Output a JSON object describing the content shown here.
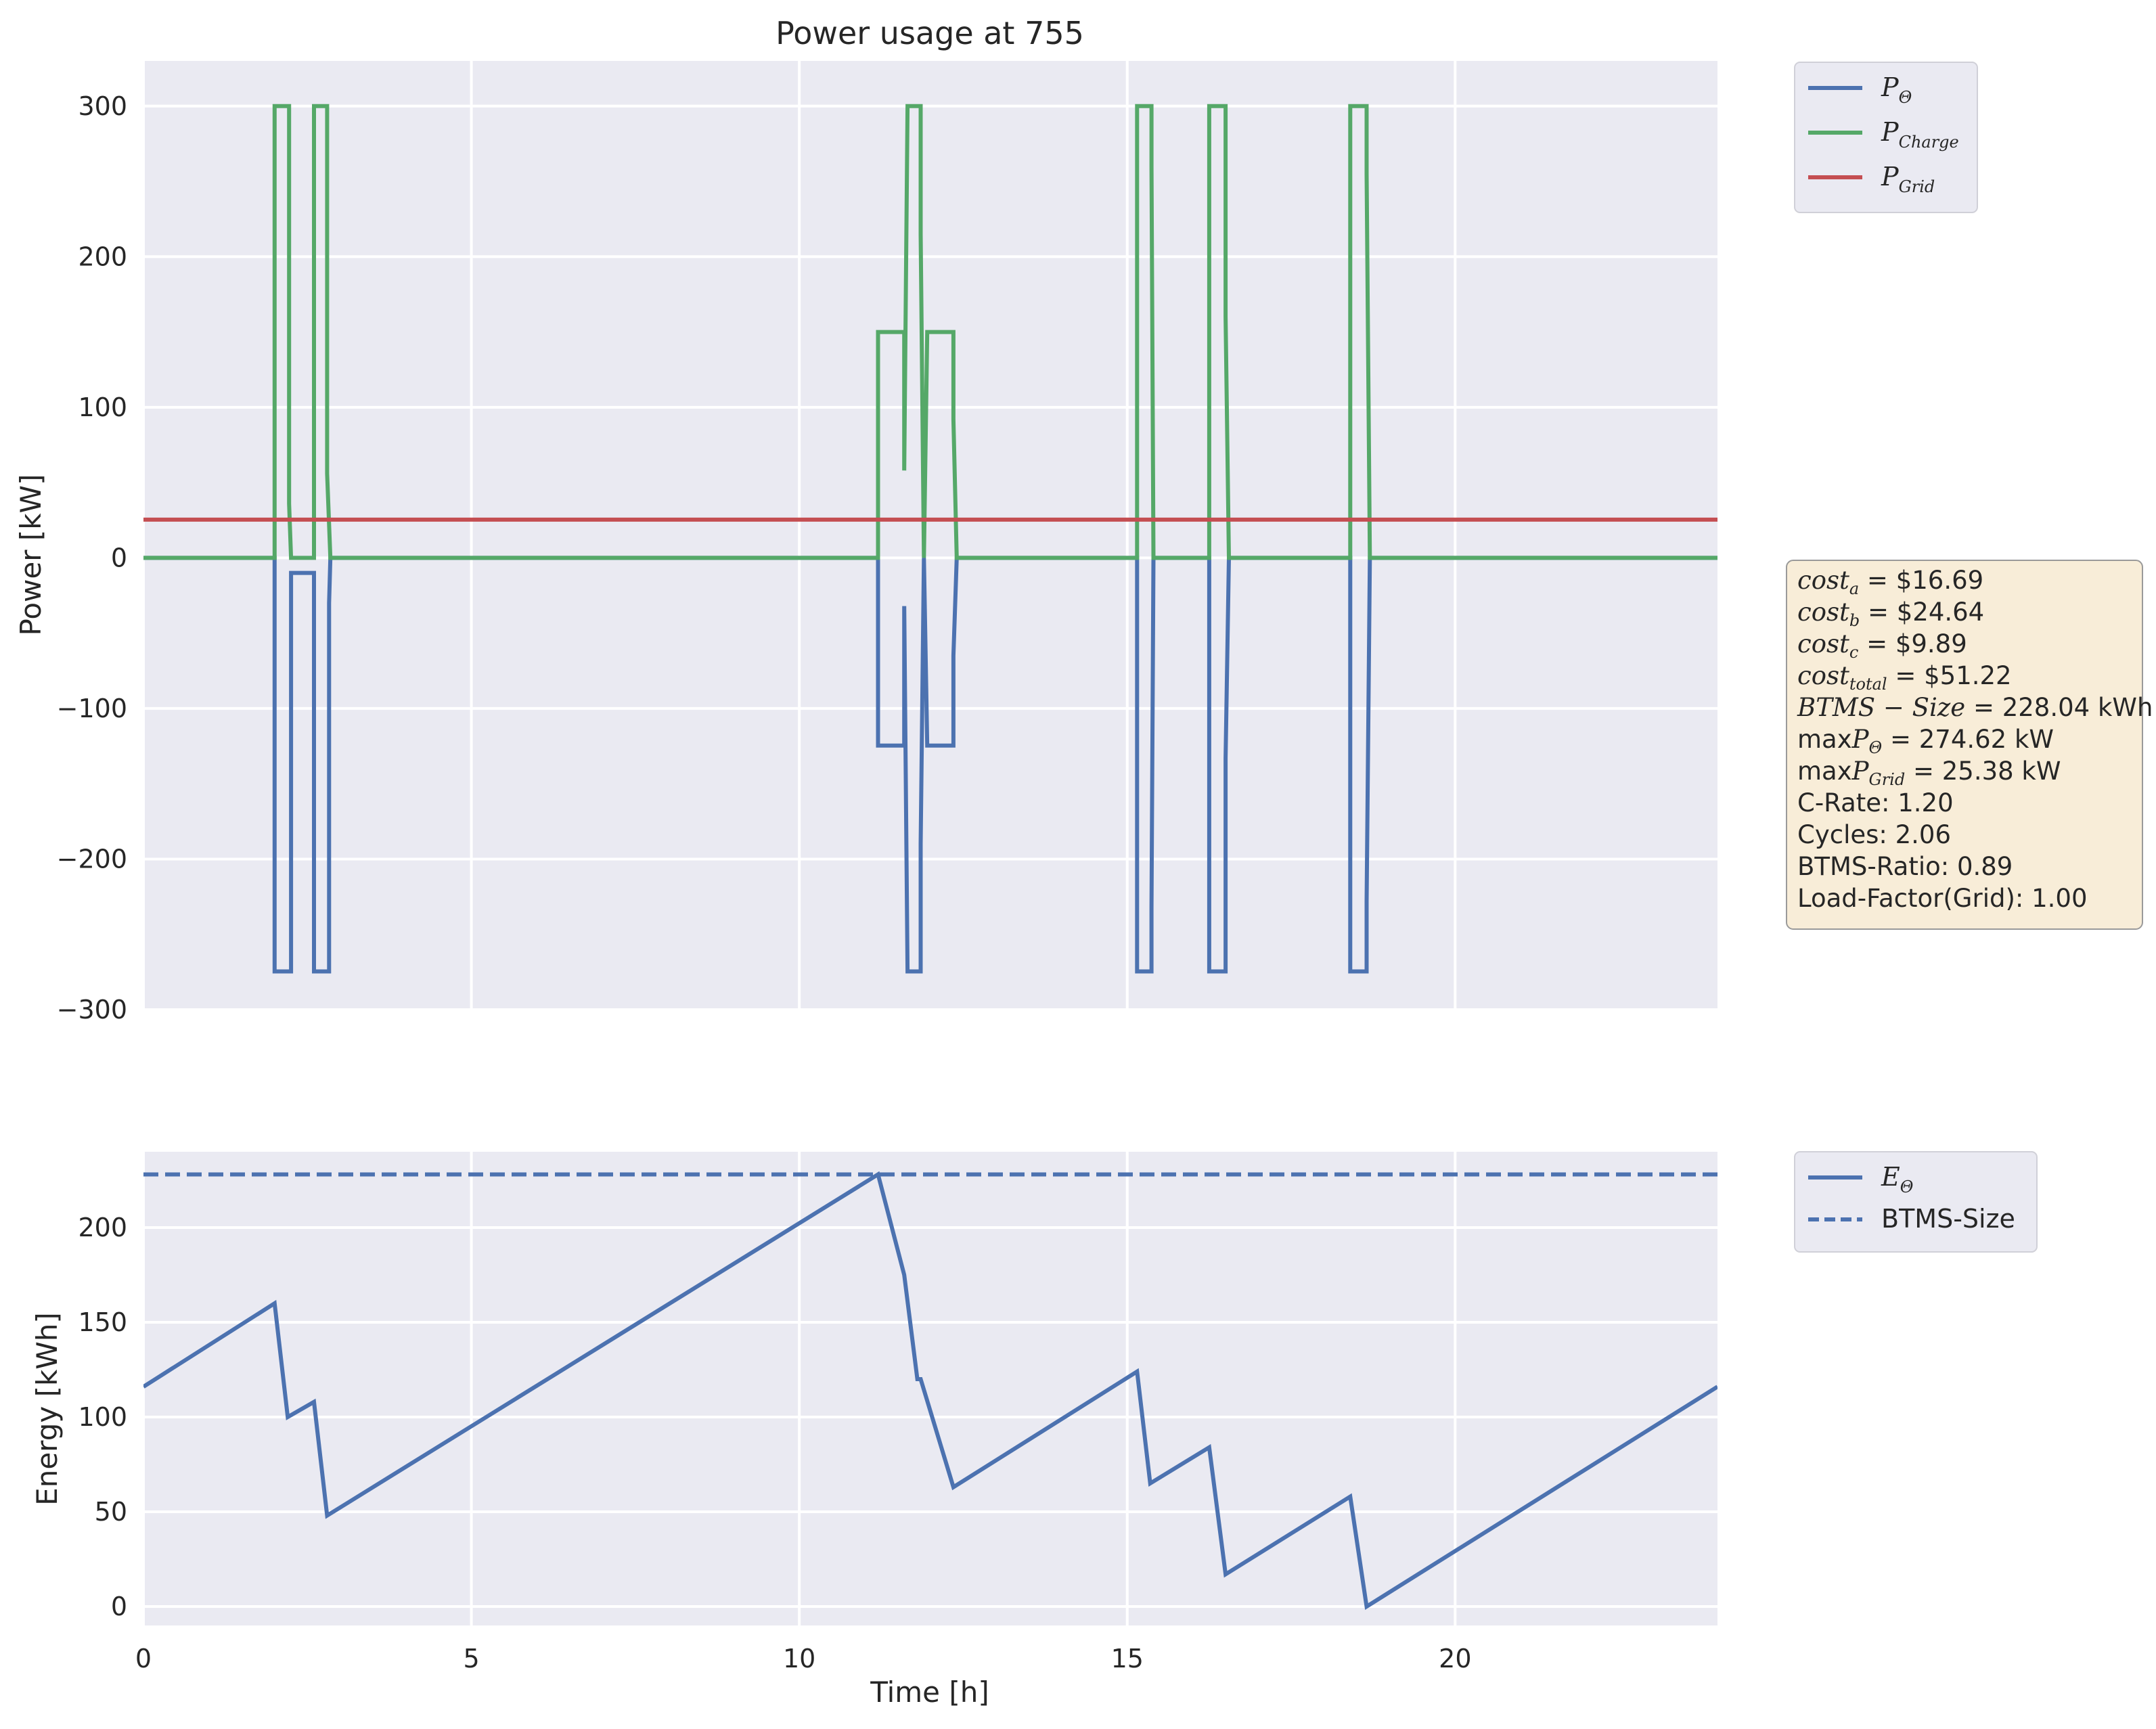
{
  "colors": {
    "p_theta": "#4c72b0",
    "p_charge": "#55a868",
    "p_grid": "#c44e52",
    "axes_bg": "#eaeaf2",
    "grid": "#ffffff",
    "stats_bg": "#f8edd8",
    "stats_border": "#9a9a9a"
  },
  "chart_data": [
    {
      "type": "line",
      "title": "Power usage at 755",
      "xlabel": "",
      "ylabel": "Power [kW]",
      "xlim": [
        0,
        24
      ],
      "ylim": [
        -300,
        330
      ],
      "yticks": [
        300,
        200,
        100,
        0,
        -100,
        -200,
        -300
      ],
      "ytick_labels": [
        "300",
        "200",
        "100",
        "0",
        "−100",
        "−200",
        "−300"
      ],
      "xticks": [
        0,
        5,
        10,
        15,
        20
      ],
      "grid": true,
      "legend": "outside-top-right",
      "series": [
        {
          "name": "P_Θ",
          "color": "#4c72b0",
          "step": true,
          "points": [
            [
              0,
              0
            ],
            [
              2,
              0
            ],
            [
              2,
              -274.62
            ],
            [
              2.25,
              -274.62
            ],
            [
              2.25,
              -10
            ],
            [
              2.6,
              -10
            ],
            [
              2.6,
              -274.62
            ],
            [
              2.83,
              -274.62
            ],
            [
              2.83,
              -30
            ],
            [
              2.85,
              0
            ],
            [
              11.2,
              0
            ],
            [
              11.2,
              -124.6
            ],
            [
              11.6,
              -124.6
            ],
            [
              11.6,
              -32
            ],
            [
              11.65,
              -274.62
            ],
            [
              11.85,
              -274.62
            ],
            [
              11.85,
              -190
            ],
            [
              11.9,
              0
            ],
            [
              11.95,
              -124.6
            ],
            [
              12.35,
              -124.6
            ],
            [
              12.35,
              -65
            ],
            [
              12.4,
              0
            ],
            [
              15.15,
              0
            ],
            [
              15.15,
              -274.62
            ],
            [
              15.37,
              -274.62
            ],
            [
              15.37,
              -232
            ],
            [
              15.4,
              0
            ],
            [
              16.25,
              0
            ],
            [
              16.25,
              -274.62
            ],
            [
              16.5,
              -274.62
            ],
            [
              16.5,
              -133
            ],
            [
              16.55,
              0
            ],
            [
              18.4,
              0
            ],
            [
              18.4,
              -274.62
            ],
            [
              18.65,
              -274.62
            ],
            [
              18.65,
              -228
            ],
            [
              18.7,
              0
            ],
            [
              24,
              0
            ]
          ]
        },
        {
          "name": "P_Charge",
          "color": "#55a868",
          "step": true,
          "points": [
            [
              0,
              0
            ],
            [
              2,
              0
            ],
            [
              2,
              300
            ],
            [
              2.22,
              300
            ],
            [
              2.22,
              36
            ],
            [
              2.25,
              0
            ],
            [
              2.6,
              0
            ],
            [
              2.6,
              300
            ],
            [
              2.8,
              300
            ],
            [
              2.8,
              56
            ],
            [
              2.85,
              0
            ],
            [
              11.2,
              0
            ],
            [
              11.2,
              150
            ],
            [
              11.6,
              150
            ],
            [
              11.6,
              58
            ],
            [
              11.65,
              300
            ],
            [
              11.85,
              300
            ],
            [
              11.85,
              215
            ],
            [
              11.9,
              0
            ],
            [
              11.95,
              150
            ],
            [
              12.35,
              150
            ],
            [
              12.35,
              92
            ],
            [
              12.4,
              0
            ],
            [
              15.15,
              0
            ],
            [
              15.15,
              300
            ],
            [
              15.37,
              300
            ],
            [
              15.37,
              260
            ],
            [
              15.4,
              0
            ],
            [
              16.25,
              0
            ],
            [
              16.25,
              300
            ],
            [
              16.5,
              300
            ],
            [
              16.5,
              160
            ],
            [
              16.55,
              0
            ],
            [
              18.4,
              0
            ],
            [
              18.4,
              300
            ],
            [
              18.65,
              300
            ],
            [
              18.65,
              255
            ],
            [
              18.7,
              0
            ],
            [
              24,
              0
            ]
          ]
        },
        {
          "name": "P_Grid",
          "color": "#c44e52",
          "step": false,
          "points": [
            [
              0,
              25.38
            ],
            [
              24,
              25.38
            ]
          ]
        }
      ]
    },
    {
      "type": "line",
      "title": "",
      "xlabel": "Time [h]",
      "ylabel": "Energy [kWh]",
      "xlim": [
        0,
        24
      ],
      "ylim": [
        -10,
        240
      ],
      "yticks": [
        200,
        150,
        100,
        50,
        0
      ],
      "ytick_labels": [
        "200",
        "150",
        "100",
        "50",
        "0"
      ],
      "xticks": [
        0,
        5,
        10,
        15,
        20
      ],
      "xtick_labels": [
        "0",
        "5",
        "10",
        "15",
        "20"
      ],
      "grid": true,
      "legend": "outside-top-right",
      "series": [
        {
          "name": "E_Θ",
          "color": "#4c72b0",
          "dashed": false,
          "points": [
            [
              0,
              116
            ],
            [
              2,
              160
            ],
            [
              2.2,
              100
            ],
            [
              2.6,
              108
            ],
            [
              2.8,
              48
            ],
            [
              11.2,
              228.04
            ],
            [
              11.6,
              175
            ],
            [
              11.8,
              120
            ],
            [
              11.85,
              120
            ],
            [
              12.35,
              63
            ],
            [
              15.15,
              124
            ],
            [
              15.35,
              65
            ],
            [
              16.25,
              84
            ],
            [
              16.5,
              17
            ],
            [
              18.4,
              58
            ],
            [
              18.65,
              0
            ],
            [
              24,
              116
            ]
          ]
        },
        {
          "name": "BTMS-Size",
          "color": "#4c72b0",
          "dashed": true,
          "points": [
            [
              0,
              228.04
            ],
            [
              24,
              228.04
            ]
          ]
        }
      ]
    }
  ],
  "legend_top": {
    "items": [
      {
        "base": "P",
        "sub": "Θ",
        "color": "#4c72b0"
      },
      {
        "base": "P",
        "sub": "Charge",
        "color": "#55a868"
      },
      {
        "base": "P",
        "sub": "Grid",
        "color": "#c44e52"
      }
    ]
  },
  "legend_bottom": {
    "items": [
      {
        "base": "E",
        "sub": "Θ",
        "color": "#4c72b0",
        "dashed": false
      },
      {
        "label": "BTMS-Size",
        "color": "#4c72b0",
        "dashed": true
      }
    ]
  },
  "stats": {
    "lines": [
      {
        "parts": [
          [
            "m",
            "cost"
          ],
          [
            "s",
            "a"
          ],
          [
            "r",
            " = $16.69"
          ]
        ]
      },
      {
        "parts": [
          [
            "m",
            "cost"
          ],
          [
            "s",
            "b"
          ],
          [
            "r",
            " = $24.64"
          ]
        ]
      },
      {
        "parts": [
          [
            "m",
            "cost"
          ],
          [
            "s",
            "c"
          ],
          [
            "r",
            " = $9.89"
          ]
        ]
      },
      {
        "parts": [
          [
            "m",
            "cost"
          ],
          [
            "s",
            "total"
          ],
          [
            "r",
            " = $51.22"
          ]
        ]
      },
      {
        "parts": [
          [
            "m",
            "BTMS − Size"
          ],
          [
            "r",
            " = 228.04 kWh"
          ]
        ]
      },
      {
        "parts": [
          [
            "r",
            "max"
          ],
          [
            "m",
            "P"
          ],
          [
            "s",
            "Θ"
          ],
          [
            "r",
            " = 274.62 kW"
          ]
        ]
      },
      {
        "parts": [
          [
            "r",
            "max"
          ],
          [
            "m",
            "P"
          ],
          [
            "s",
            "Grid"
          ],
          [
            "r",
            " = 25.38 kW"
          ]
        ]
      },
      {
        "parts": [
          [
            "r",
            "C-Rate: 1.20"
          ]
        ]
      },
      {
        "parts": [
          [
            "r",
            "Cycles: 2.06"
          ]
        ]
      },
      {
        "parts": [
          [
            "r",
            "BTMS-Ratio: 0.89"
          ]
        ]
      },
      {
        "parts": [
          [
            "r",
            "Load-Factor(Grid): 1.00"
          ]
        ]
      }
    ]
  }
}
